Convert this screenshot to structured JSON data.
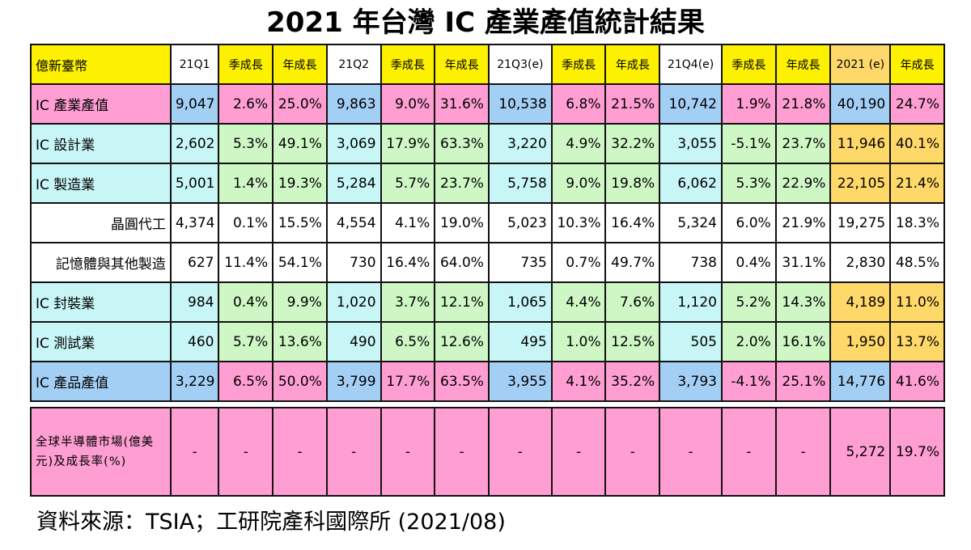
{
  "title": "2021 年台灣 IC 產業產值統計結果",
  "source": "資料來源：TSIA；工研院產科國際所 (2021/08)",
  "colors": {
    "yellow": "#fdf000",
    "pink": "#ff9ed2",
    "blue": "#a4cff5",
    "cyan": "#c8f6f6",
    "green": "#cff7c6",
    "orange": "#ffd86a",
    "white": "#ffffff"
  },
  "header": {
    "corner": "億新臺幣",
    "cols": [
      "21Q1",
      "季成長",
      "年成長",
      "21Q2",
      "季成長",
      "年成長",
      "21Q3(e)",
      "季成長",
      "年成長",
      "21Q4(e)",
      "季成長",
      "年成長",
      "2021 (e)",
      "年成長"
    ]
  },
  "rows": [
    {
      "label": "IC 產業產值",
      "values": [
        "9,047",
        "2.6%",
        "25.0%",
        "9,863",
        "9.0%",
        "31.6%",
        "10,538",
        "6.8%",
        "21.5%",
        "10,742",
        "1.9%",
        "21.8%",
        "40,190",
        "24.7%"
      ]
    },
    {
      "label": "IC 設計業",
      "values": [
        "2,602",
        "5.3%",
        "49.1%",
        "3,069",
        "17.9%",
        "63.3%",
        "3,220",
        "4.9%",
        "32.2%",
        "3,055",
        "-5.1%",
        "23.7%",
        "11,946",
        "40.1%"
      ]
    },
    {
      "label": "IC 製造業",
      "values": [
        "5,001",
        "1.4%",
        "19.3%",
        "5,284",
        "5.7%",
        "23.7%",
        "5,758",
        "9.0%",
        "19.8%",
        "6,062",
        "5.3%",
        "22.9%",
        "22,105",
        "21.4%"
      ]
    },
    {
      "label": "晶圓代工",
      "values": [
        "4,374",
        "0.1%",
        "15.5%",
        "4,554",
        "4.1%",
        "19.0%",
        "5,023",
        "10.3%",
        "16.4%",
        "5,324",
        "6.0%",
        "21.9%",
        "19,275",
        "18.3%"
      ]
    },
    {
      "label": "記憶體與其他製造",
      "values": [
        "627",
        "11.4%",
        "54.1%",
        "730",
        "16.4%",
        "64.0%",
        "735",
        "0.7%",
        "49.7%",
        "738",
        "0.4%",
        "31.1%",
        "2,830",
        "48.5%"
      ]
    },
    {
      "label": "IC 封裝業",
      "values": [
        "984",
        "0.4%",
        "9.9%",
        "1,020",
        "3.7%",
        "12.1%",
        "1,065",
        "4.4%",
        "7.6%",
        "1,120",
        "5.2%",
        "14.3%",
        "4,189",
        "11.0%"
      ]
    },
    {
      "label": "IC 測試業",
      "values": [
        "460",
        "5.7%",
        "13.6%",
        "490",
        "6.5%",
        "12.6%",
        "495",
        "1.0%",
        "12.5%",
        "505",
        "2.0%",
        "16.1%",
        "1,950",
        "13.7%"
      ]
    },
    {
      "label": "IC 產品產值",
      "values": [
        "3,229",
        "6.5%",
        "50.0%",
        "3,799",
        "17.7%",
        "63.5%",
        "3,955",
        "4.1%",
        "35.2%",
        "3,793",
        "-4.1%",
        "25.1%",
        "14,776",
        "41.6%"
      ]
    }
  ],
  "global_row": {
    "label": "全球半導體市場(億美元)及成長率(%)",
    "values": [
      "-",
      "-",
      "-",
      "-",
      "-",
      "-",
      "-",
      "-",
      "-",
      "-",
      "-",
      "-",
      "5,272",
      "19.7%"
    ]
  }
}
